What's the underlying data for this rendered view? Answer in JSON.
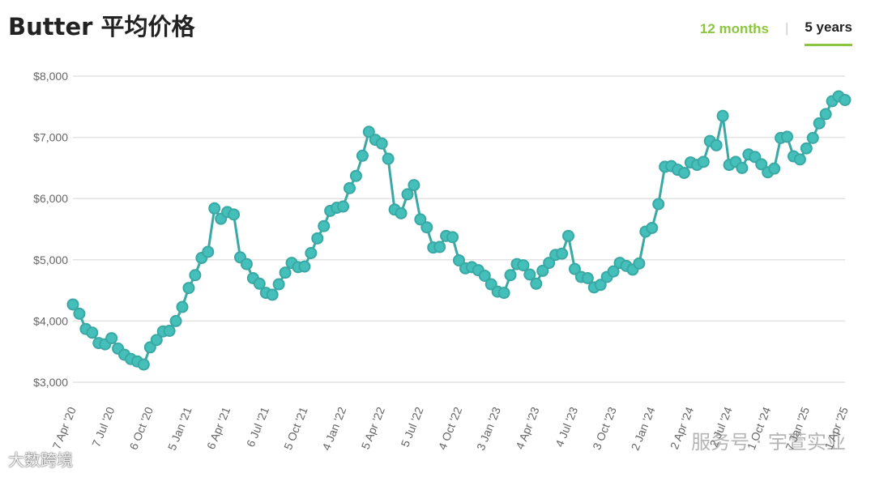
{
  "header": {
    "title": "Butter 平均价格",
    "tabs": [
      {
        "label": "12 months",
        "state": "link"
      },
      {
        "label": "5 years",
        "state": "selected"
      }
    ],
    "separator": "|"
  },
  "watermarks": {
    "left": "大数跨境",
    "right": "服务号 · 宇萱实业"
  },
  "colors": {
    "line": "#3aa8a4",
    "point_fill": "#45bfb9",
    "grid": "#e2e2e2",
    "accent": "#8cc63f"
  },
  "chart_data": {
    "type": "line",
    "title": "Butter 平均价格",
    "xlabel": "",
    "ylabel": "",
    "ylim": [
      3000,
      8000
    ],
    "yticks": [
      {
        "value": 8000,
        "label": "$8,000"
      },
      {
        "value": 7000,
        "label": "$7,000"
      },
      {
        "value": 6000,
        "label": "$6,000"
      },
      {
        "value": 5000,
        "label": "$5,000"
      },
      {
        "value": 4000,
        "label": "$4,000"
      },
      {
        "value": 3000,
        "label": "$3,000"
      }
    ],
    "xticks": [
      {
        "index": 0,
        "label": "7 Apr '20"
      },
      {
        "index": 6,
        "label": "7 Jul '20"
      },
      {
        "index": 12,
        "label": "6 Oct '20"
      },
      {
        "index": 18,
        "label": "5 Jan '21"
      },
      {
        "index": 24,
        "label": "6 Apr '21"
      },
      {
        "index": 30,
        "label": "6 Jul '21"
      },
      {
        "index": 36,
        "label": "5 Oct '21"
      },
      {
        "index": 42,
        "label": "4 Jan '22"
      },
      {
        "index": 48,
        "label": "5 Apr '22"
      },
      {
        "index": 54,
        "label": "5 Jul '22"
      },
      {
        "index": 60,
        "label": "4 Oct '22"
      },
      {
        "index": 66,
        "label": "3 Jan '23"
      },
      {
        "index": 72,
        "label": "4 Apr '23"
      },
      {
        "index": 78,
        "label": "4 Jul '23"
      },
      {
        "index": 84,
        "label": "3 Oct '23"
      },
      {
        "index": 90,
        "label": "2 Jan '24"
      },
      {
        "index": 96,
        "label": "2 Apr '24"
      },
      {
        "index": 102,
        "label": "2 Jul '24"
      },
      {
        "index": 108,
        "label": "1 Oct '24"
      },
      {
        "index": 114,
        "label": "7 Jan '25"
      },
      {
        "index": 120,
        "label": "1 Apr '25"
      }
    ],
    "series": [
      {
        "values": [
          4270,
          4120,
          3870,
          3810,
          3640,
          3620,
          3720,
          3550,
          3450,
          3380,
          3340,
          3290,
          3570,
          3690,
          3830,
          3840,
          4000,
          4230,
          4540,
          4750,
          5030,
          5130,
          5840,
          5670,
          5780,
          5740,
          5040,
          4930,
          4700,
          4610,
          4460,
          4430,
          4600,
          4790,
          4950,
          4880,
          4890,
          5110,
          5350,
          5550,
          5800,
          5850,
          5870,
          6170,
          6370,
          6700,
          7090,
          6960,
          6900,
          6650,
          5820,
          5760,
          6070,
          6220,
          5660,
          5530,
          5200,
          5210,
          5390,
          5370,
          4990,
          4860,
          4880,
          4830,
          4740,
          4600,
          4480,
          4460,
          4750,
          4930,
          4910,
          4760,
          4610,
          4820,
          4950,
          5080,
          5100,
          5390,
          4850,
          4720,
          4700,
          4550,
          4590,
          4720,
          4810,
          4950,
          4900,
          4840,
          4940,
          5460,
          5520,
          5910,
          6520,
          6530,
          6470,
          6420,
          6590,
          6550,
          6600,
          6940,
          6870,
          7350,
          6550,
          6600,
          6500,
          6720,
          6680,
          6560,
          6430,
          6490,
          6990,
          7010,
          6690,
          6640,
          6820,
          6990,
          7230,
          7380,
          7590,
          7670,
          7610
        ]
      }
    ],
    "grid": true,
    "legend": "none"
  }
}
